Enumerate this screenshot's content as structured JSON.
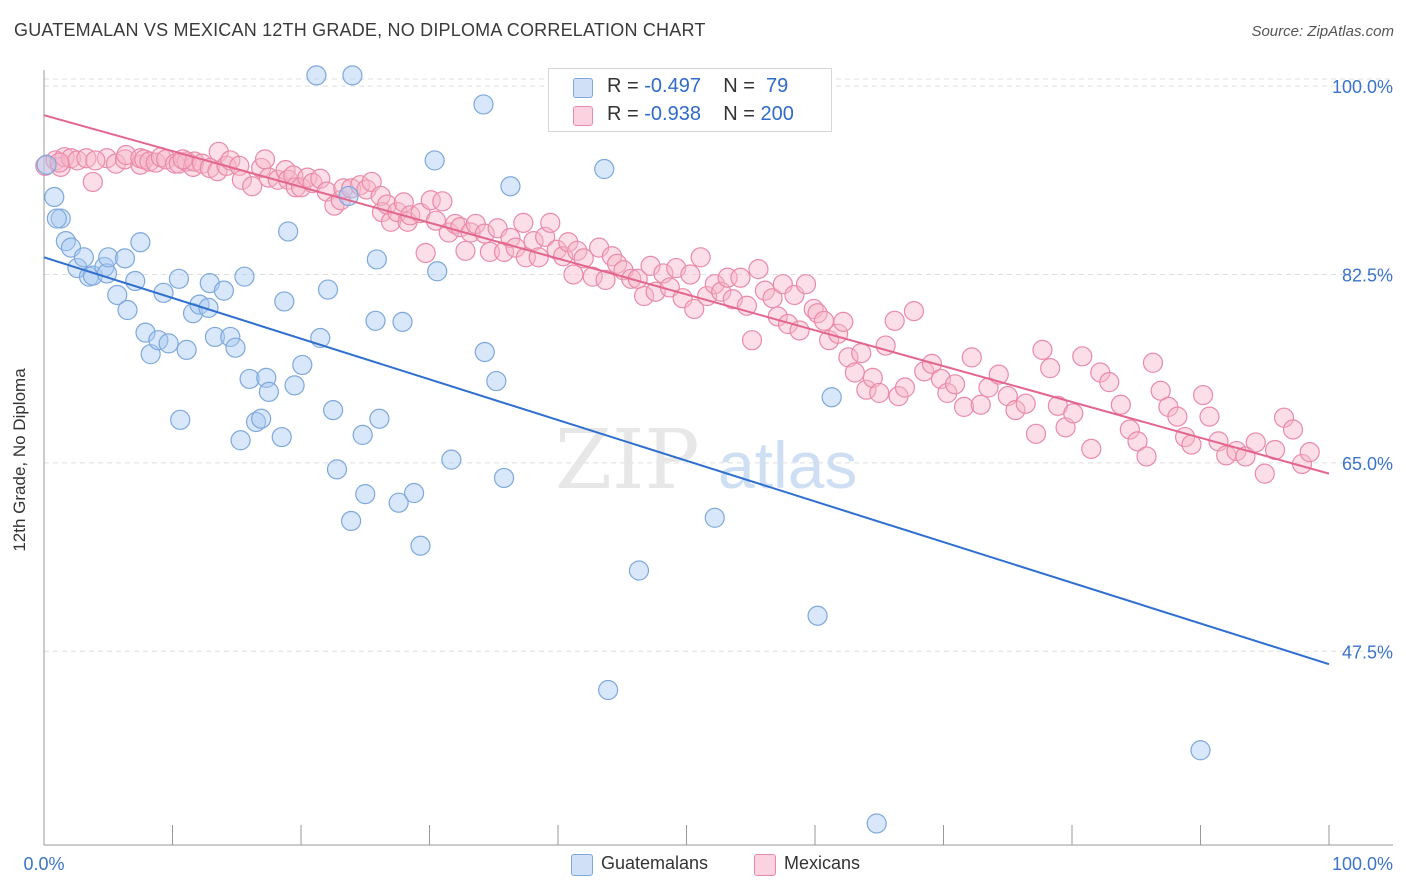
{
  "header": {
    "title": "GUATEMALAN VS MEXICAN 12TH GRADE, NO DIPLOMA CORRELATION CHART",
    "source": "Source: ZipAtlas.com"
  },
  "watermark": {
    "zip": "ZIP",
    "atlas": "atlas"
  },
  "legend_top": {
    "rows": [
      {
        "r_label": "R = ",
        "r_value": "-0.497",
        "n_label": "N = ",
        "n_value": " 79",
        "color": "#a9c9f2"
      },
      {
        "r_label": "R = ",
        "r_value": "-0.938",
        "n_label": "N = ",
        "n_value": "200",
        "color": "#f6b5ca"
      }
    ]
  },
  "legend_bottom": [
    {
      "label": "Guatemalans",
      "color": "#a9c9f2"
    },
    {
      "label": "Mexicans",
      "color": "#f6b5ca"
    }
  ],
  "colors": {
    "blue_fill": "#a9c9f2",
    "blue_stroke": "#7ea8dc",
    "blue_line": "#2f6fd0",
    "pink_fill": "#f6b5ca",
    "pink_stroke": "#e98aa9",
    "pink_line": "#e2668e",
    "tick_label": "#3b74c9",
    "grid": "#dedede"
  },
  "chart_data": {
    "type": "scatter",
    "title": "GUATEMALAN VS MEXICAN 12TH GRADE, NO DIPLOMA CORRELATION CHART",
    "xlabel": "",
    "ylabel": "12th Grade, No Diploma",
    "xlim": [
      0,
      100
    ],
    "ylim": [
      29.5,
      101.5
    ],
    "x_tick_labels": [
      "0.0%",
      "100.0%"
    ],
    "y_ticks": [
      47.5,
      65.0,
      82.5,
      100.0
    ],
    "y_tick_labels": [
      "47.5%",
      "65.0%",
      "82.5%",
      "100.0%"
    ],
    "grid": true,
    "legend_position": "top-center",
    "series": [
      {
        "name": "Guatemalans",
        "r": -0.497,
        "n": 79,
        "trend": {
          "x": [
            0,
            100
          ],
          "y": [
            84.1,
            46.3
          ]
        },
        "points": [
          [
            0.2,
            92.7
          ],
          [
            0.8,
            89.7
          ],
          [
            1.3,
            87.7
          ],
          [
            1.7,
            85.6
          ],
          [
            2.1,
            85.0
          ],
          [
            2.6,
            83.1
          ],
          [
            3.1,
            84.1
          ],
          [
            3.5,
            82.3
          ],
          [
            3.8,
            82.4
          ],
          [
            4.7,
            83.2
          ],
          [
            4.9,
            82.6
          ],
          [
            5.0,
            84.1
          ],
          [
            5.7,
            80.6
          ],
          [
            6.3,
            84.0
          ],
          [
            6.5,
            79.2
          ],
          [
            7.1,
            81.9
          ],
          [
            7.5,
            85.5
          ],
          [
            7.9,
            77.1
          ],
          [
            8.3,
            75.1
          ],
          [
            8.9,
            76.4
          ],
          [
            9.3,
            80.8
          ],
          [
            9.7,
            76.1
          ],
          [
            10.5,
            82.1
          ],
          [
            10.6,
            69.0
          ],
          [
            11.1,
            75.5
          ],
          [
            11.6,
            78.9
          ],
          [
            12.1,
            79.7
          ],
          [
            12.8,
            79.4
          ],
          [
            12.9,
            81.7
          ],
          [
            13.3,
            76.7
          ],
          [
            14.0,
            81.0
          ],
          [
            14.5,
            76.7
          ],
          [
            14.9,
            75.7
          ],
          [
            15.3,
            67.1
          ],
          [
            15.6,
            82.3
          ],
          [
            16.0,
            72.8
          ],
          [
            16.5,
            68.8
          ],
          [
            16.9,
            69.1
          ],
          [
            17.3,
            72.9
          ],
          [
            17.5,
            71.6
          ],
          [
            18.5,
            67.4
          ],
          [
            18.7,
            80.0
          ],
          [
            19.0,
            86.5
          ],
          [
            19.5,
            72.2
          ],
          [
            20.1,
            74.1
          ],
          [
            21.2,
            101.0
          ],
          [
            21.5,
            76.6
          ],
          [
            22.1,
            81.1
          ],
          [
            22.5,
            69.9
          ],
          [
            22.8,
            64.4
          ],
          [
            23.7,
            89.8
          ],
          [
            23.9,
            59.6
          ],
          [
            24.0,
            101.0
          ],
          [
            24.8,
            67.6
          ],
          [
            25.0,
            62.1
          ],
          [
            25.8,
            78.2
          ],
          [
            25.9,
            83.9
          ],
          [
            26.1,
            69.1
          ],
          [
            27.6,
            61.3
          ],
          [
            27.9,
            78.1
          ],
          [
            28.8,
            62.2
          ],
          [
            29.3,
            57.3
          ],
          [
            30.4,
            93.1
          ],
          [
            30.6,
            82.8
          ],
          [
            31.7,
            65.3
          ],
          [
            34.2,
            98.3
          ],
          [
            34.3,
            75.3
          ],
          [
            35.2,
            72.6
          ],
          [
            35.8,
            63.6
          ],
          [
            36.3,
            90.7
          ],
          [
            43.6,
            92.3
          ],
          [
            43.9,
            43.9
          ],
          [
            46.3,
            55.0
          ],
          [
            52.2,
            59.9
          ],
          [
            60.2,
            50.8
          ],
          [
            61.3,
            71.1
          ],
          [
            64.8,
            31.5
          ],
          [
            90.0,
            38.3
          ],
          [
            1.0,
            87.7
          ]
        ]
      },
      {
        "name": "Mexicans",
        "r": -0.938,
        "n": 200,
        "trend": {
          "x": [
            0,
            100
          ],
          "y": [
            97.3,
            64.0
          ]
        },
        "points": [
          [
            0.1,
            92.6
          ],
          [
            0.9,
            93.1
          ],
          [
            1.3,
            92.5
          ],
          [
            1.6,
            93.4
          ],
          [
            2.1,
            93.3
          ],
          [
            2.6,
            93.1
          ],
          [
            3.3,
            93.3
          ],
          [
            3.8,
            91.1
          ],
          [
            4.9,
            93.3
          ],
          [
            5.6,
            92.8
          ],
          [
            6.3,
            93.2
          ],
          [
            6.4,
            93.6
          ],
          [
            7.5,
            92.7
          ],
          [
            7.5,
            93.3
          ],
          [
            7.8,
            93.2
          ],
          [
            8.2,
            93.0
          ],
          [
            8.7,
            92.9
          ],
          [
            9.1,
            93.4
          ],
          [
            9.5,
            93.2
          ],
          [
            10.2,
            92.8
          ],
          [
            10.5,
            92.8
          ],
          [
            11.1,
            93.0
          ],
          [
            11.6,
            92.5
          ],
          [
            11.7,
            93.0
          ],
          [
            12.3,
            92.8
          ],
          [
            12.9,
            92.4
          ],
          [
            13.5,
            92.1
          ],
          [
            13.6,
            93.9
          ],
          [
            14.2,
            92.6
          ],
          [
            14.5,
            93.1
          ],
          [
            15.2,
            92.6
          ],
          [
            15.4,
            91.3
          ],
          [
            16.2,
            90.7
          ],
          [
            16.9,
            92.4
          ],
          [
            17.2,
            93.2
          ],
          [
            17.5,
            91.5
          ],
          [
            18.2,
            91.3
          ],
          [
            18.8,
            92.2
          ],
          [
            19.0,
            91.3
          ],
          [
            19.4,
            91.7
          ],
          [
            19.6,
            90.6
          ],
          [
            20.0,
            90.6
          ],
          [
            20.5,
            91.5
          ],
          [
            20.9,
            91.0
          ],
          [
            21.5,
            91.4
          ],
          [
            22.0,
            90.2
          ],
          [
            22.6,
            88.9
          ],
          [
            23.1,
            89.4
          ],
          [
            23.3,
            90.5
          ],
          [
            23.9,
            90.5
          ],
          [
            24.6,
            90.8
          ],
          [
            25.1,
            90.4
          ],
          [
            25.5,
            91.1
          ],
          [
            26.2,
            89.8
          ],
          [
            26.3,
            88.3
          ],
          [
            26.7,
            89.0
          ],
          [
            27.0,
            87.4
          ],
          [
            27.5,
            88.3
          ],
          [
            28.0,
            89.2
          ],
          [
            28.3,
            87.4
          ],
          [
            28.5,
            88.0
          ],
          [
            29.3,
            88.2
          ],
          [
            29.7,
            84.5
          ],
          [
            30.1,
            89.4
          ],
          [
            30.5,
            87.5
          ],
          [
            31.0,
            89.3
          ],
          [
            31.5,
            86.4
          ],
          [
            32.0,
            87.2
          ],
          [
            32.4,
            86.9
          ],
          [
            32.8,
            84.7
          ],
          [
            33.2,
            86.4
          ],
          [
            33.6,
            87.2
          ],
          [
            34.3,
            86.3
          ],
          [
            34.7,
            84.6
          ],
          [
            35.3,
            86.8
          ],
          [
            35.8,
            84.6
          ],
          [
            36.3,
            85.9
          ],
          [
            36.7,
            85.0
          ],
          [
            37.3,
            87.3
          ],
          [
            37.5,
            84.1
          ],
          [
            38.1,
            85.6
          ],
          [
            38.5,
            84.1
          ],
          [
            39.0,
            86.0
          ],
          [
            39.4,
            87.3
          ],
          [
            39.9,
            84.8
          ],
          [
            40.4,
            84.2
          ],
          [
            40.8,
            85.5
          ],
          [
            41.2,
            82.5
          ],
          [
            41.5,
            84.7
          ],
          [
            42.0,
            84.0
          ],
          [
            42.7,
            82.3
          ],
          [
            43.2,
            85.0
          ],
          [
            43.7,
            82.0
          ],
          [
            44.2,
            84.2
          ],
          [
            44.6,
            83.5
          ],
          [
            45.1,
            82.9
          ],
          [
            45.7,
            82.1
          ],
          [
            46.2,
            82.1
          ],
          [
            46.7,
            80.5
          ],
          [
            47.2,
            83.3
          ],
          [
            47.6,
            80.9
          ],
          [
            48.2,
            82.6
          ],
          [
            48.7,
            81.3
          ],
          [
            49.2,
            83.1
          ],
          [
            49.7,
            80.3
          ],
          [
            50.3,
            82.5
          ],
          [
            50.6,
            79.3
          ],
          [
            51.1,
            84.1
          ],
          [
            51.6,
            80.5
          ],
          [
            52.2,
            81.6
          ],
          [
            52.7,
            80.9
          ],
          [
            53.2,
            82.2
          ],
          [
            53.6,
            80.2
          ],
          [
            54.2,
            82.2
          ],
          [
            54.7,
            79.6
          ],
          [
            55.1,
            76.4
          ],
          [
            55.6,
            83.0
          ],
          [
            56.1,
            81.0
          ],
          [
            56.7,
            80.3
          ],
          [
            57.1,
            78.6
          ],
          [
            57.5,
            81.6
          ],
          [
            57.9,
            77.9
          ],
          [
            58.4,
            80.6
          ],
          [
            58.8,
            77.3
          ],
          [
            59.3,
            81.6
          ],
          [
            59.9,
            79.3
          ],
          [
            60.2,
            78.9
          ],
          [
            60.7,
            78.2
          ],
          [
            61.1,
            76.4
          ],
          [
            61.8,
            77.0
          ],
          [
            62.2,
            78.1
          ],
          [
            62.6,
            74.8
          ],
          [
            63.1,
            73.4
          ],
          [
            63.6,
            75.2
          ],
          [
            64.0,
            71.8
          ],
          [
            64.5,
            72.9
          ],
          [
            65.0,
            71.5
          ],
          [
            65.5,
            75.9
          ],
          [
            66.2,
            78.2
          ],
          [
            66.5,
            71.2
          ],
          [
            67.0,
            72.0
          ],
          [
            67.7,
            79.1
          ],
          [
            68.5,
            73.5
          ],
          [
            69.1,
            74.2
          ],
          [
            69.8,
            72.8
          ],
          [
            70.3,
            71.5
          ],
          [
            70.9,
            72.3
          ],
          [
            71.6,
            70.2
          ],
          [
            72.2,
            74.8
          ],
          [
            72.9,
            70.4
          ],
          [
            73.5,
            72.0
          ],
          [
            74.3,
            73.2
          ],
          [
            75.0,
            71.2
          ],
          [
            75.6,
            69.9
          ],
          [
            76.4,
            70.5
          ],
          [
            77.2,
            67.7
          ],
          [
            77.7,
            75.5
          ],
          [
            78.3,
            73.8
          ],
          [
            78.9,
            70.3
          ],
          [
            79.5,
            68.3
          ],
          [
            80.1,
            69.6
          ],
          [
            80.8,
            74.9
          ],
          [
            81.5,
            66.3
          ],
          [
            82.2,
            73.4
          ],
          [
            82.9,
            72.5
          ],
          [
            83.8,
            70.4
          ],
          [
            84.5,
            68.1
          ],
          [
            85.1,
            67.0
          ],
          [
            85.8,
            65.6
          ],
          [
            86.3,
            74.3
          ],
          [
            86.9,
            71.7
          ],
          [
            87.5,
            70.2
          ],
          [
            88.2,
            69.3
          ],
          [
            88.8,
            67.4
          ],
          [
            89.3,
            66.7
          ],
          [
            90.2,
            71.3
          ],
          [
            90.7,
            69.3
          ],
          [
            91.4,
            67.0
          ],
          [
            92.0,
            65.7
          ],
          [
            92.8,
            66.1
          ],
          [
            93.5,
            65.6
          ],
          [
            94.3,
            66.9
          ],
          [
            95.0,
            64.0
          ],
          [
            95.8,
            66.2
          ],
          [
            96.5,
            69.2
          ],
          [
            97.2,
            68.1
          ],
          [
            97.9,
            64.9
          ],
          [
            98.5,
            66.0
          ],
          [
            1.2,
            92.9
          ],
          [
            4.0,
            93.1
          ],
          [
            10.8,
            93.2
          ]
        ]
      }
    ]
  }
}
